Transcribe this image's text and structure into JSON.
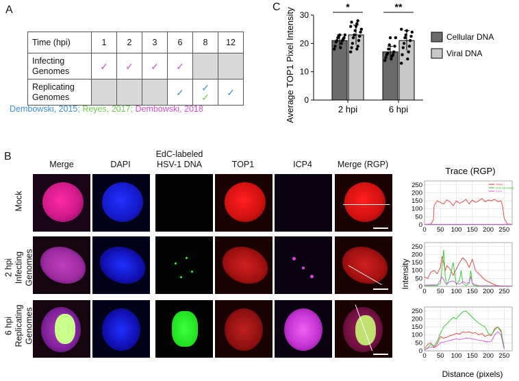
{
  "panels": {
    "a": "A",
    "b": "B",
    "c": "C"
  },
  "table": {
    "header_label": "Time (hpi)",
    "times": [
      "1",
      "2",
      "3",
      "6",
      "8",
      "12"
    ],
    "rows": [
      {
        "label_line1": "Infecting",
        "label_line2": "Genomes",
        "cells": [
          [
            "pink"
          ],
          [
            "pink"
          ],
          [
            "pink"
          ],
          [
            "pink"
          ],
          [],
          []
        ],
        "gray": [
          false,
          false,
          false,
          false,
          true,
          true
        ]
      },
      {
        "label_line1": "Replicating",
        "label_line2": "Genomes",
        "cells": [
          [],
          [],
          [],
          [
            "blue"
          ],
          [
            "blue",
            "green"
          ],
          [
            "blue"
          ]
        ],
        "gray": [
          true,
          true,
          true,
          false,
          false,
          false
        ]
      }
    ],
    "check_glyph": "✓"
  },
  "citations": {
    "c1": "Dembowski, 2015;",
    "c2": "Reyes, 2017;",
    "c3": "Dembowski, 2018",
    "colors": {
      "blue": "#3b8fd6",
      "green": "#6ccf4c",
      "pink": "#d64fc9"
    }
  },
  "imaging": {
    "columns": [
      "Merge",
      "DAPI",
      "EdC-labeled",
      "HSV-1 DNA",
      "TOP1",
      "ICP4",
      "Merge (RGP)"
    ],
    "rows": [
      {
        "lines": [
          "Mock"
        ]
      },
      {
        "lines": [
          "2 hpi",
          "Infecting",
          "Genomes"
        ]
      },
      {
        "lines": [
          "6 hpi",
          "Replicating",
          "Genomes"
        ]
      }
    ]
  },
  "chart_data": [
    {
      "type": "bar",
      "categories": [
        "2 hpi",
        "6 hpi"
      ],
      "series": [
        {
          "name": "Cellular DNA",
          "values": [
            21,
            17
          ],
          "color": "#6b6b6b",
          "points": [
            [
              18,
              18.5,
              19,
              20,
              20.5,
              21,
              21,
              21.5,
              22,
              22,
              22.5,
              23,
              23
            ],
            [
              14,
              14.5,
              15,
              15.5,
              16,
              16,
              16.5,
              17,
              18,
              19,
              19.5,
              22,
              22
            ]
          ]
        },
        {
          "name": "Viral DNA",
          "values": [
            23,
            21
          ],
          "color": "#c8c8c8",
          "points": [
            [
              17,
              18,
              18.5,
              19,
              20,
              21,
              22,
              22.5,
              23,
              24,
              24.5,
              25,
              26,
              26,
              27,
              27.5,
              28
            ],
            [
              13,
              14.5,
              16,
              17,
              18.5,
              19,
              20,
              21,
              22,
              22.5,
              23,
              24,
              24.5,
              25
            ]
          ]
        }
      ],
      "significance": [
        "*",
        "**"
      ],
      "ylabel": "Average TOP1 Pixel Intensity",
      "ylim": [
        0,
        30
      ],
      "yticks": [
        0,
        10,
        20,
        30
      ],
      "legend": "right"
    },
    {
      "type": "line",
      "title": "Trace (RGP)",
      "xlim": [
        0,
        275
      ],
      "ylim": [
        0,
        275
      ],
      "xticks": [
        0,
        50,
        100,
        150,
        200,
        250
      ],
      "yticks": [
        0,
        50,
        100,
        150,
        200,
        250
      ],
      "ylabel": "Intensity",
      "xlabel": "Distance (pixels)",
      "legend_labels": [
        "TOP1",
        "Viral Genomes",
        "ICP4"
      ],
      "series_colors": [
        "#e53935",
        "#22cc22",
        "#d84ce0"
      ],
      "plots": [
        {
          "row": "Mock",
          "series": [
            {
              "name": "TOP1",
              "x": [
                0,
                10,
                20,
                28,
                30,
                40,
                50,
                60,
                70,
                80,
                90,
                100,
                110,
                120,
                130,
                140,
                150,
                160,
                170,
                180,
                190,
                200,
                210,
                220,
                230,
                240,
                245,
                250,
                260,
                275
              ],
              "y": [
                2,
                2,
                5,
                30,
                120,
                150,
                140,
                130,
                155,
                145,
                120,
                150,
                135,
                145,
                160,
                130,
                155,
                140,
                150,
                165,
                145,
                155,
                150,
                160,
                145,
                150,
                120,
                40,
                5,
                2
              ]
            },
            {
              "name": "Viral Genomes",
              "x": [
                0,
                275
              ],
              "y": [
                2,
                2
              ]
            },
            {
              "name": "ICP4",
              "x": [
                0,
                275
              ],
              "y": [
                3,
                3
              ]
            }
          ]
        },
        {
          "row": "2 hpi",
          "series": [
            {
              "name": "TOP1",
              "x": [
                0,
                10,
                20,
                30,
                40,
                50,
                55,
                60,
                65,
                70,
                80,
                90,
                100,
                110,
                120,
                130,
                140,
                150,
                160,
                170,
                180,
                190,
                200,
                210,
                220,
                230,
                240,
                250
              ],
              "y": [
                60,
                50,
                90,
                100,
                80,
                120,
                190,
                150,
                100,
                130,
                110,
                70,
                110,
                150,
                180,
                160,
                120,
                170,
                100,
                80,
                60,
                40,
                30,
                20,
                10,
                5,
                3,
                2
              ]
            },
            {
              "name": "Viral Genomes",
              "x": [
                0,
                40,
                50,
                55,
                60,
                65,
                70,
                80,
                90,
                95,
                100,
                110,
                115,
                120,
                130,
                140,
                145,
                150,
                155,
                160,
                170,
                275
              ],
              "y": [
                5,
                5,
                20,
                120,
                230,
                60,
                10,
                60,
                150,
                80,
                10,
                40,
                100,
                20,
                5,
                20,
                100,
                20,
                5,
                5,
                3,
                2
              ]
            },
            {
              "name": "ICP4",
              "x": [
                0,
                40,
                50,
                55,
                60,
                65,
                70,
                80,
                90,
                100,
                110,
                120,
                130,
                140,
                145,
                150,
                160,
                170,
                275
              ],
              "y": [
                8,
                10,
                40,
                60,
                45,
                20,
                15,
                30,
                35,
                20,
                15,
                30,
                20,
                25,
                60,
                20,
                10,
                5,
                3
              ]
            }
          ]
        },
        {
          "row": "6 hpi",
          "series": [
            {
              "name": "TOP1",
              "x": [
                0,
                10,
                20,
                30,
                40,
                50,
                60,
                70,
                80,
                90,
                100,
                110,
                120,
                130,
                140,
                150,
                160,
                170,
                180,
                190,
                200,
                210,
                220,
                230,
                240,
                250
              ],
              "y": [
                15,
                40,
                50,
                20,
                45,
                90,
                80,
                85,
                95,
                100,
                110,
                105,
                120,
                115,
                120,
                110,
                115,
                100,
                110,
                90,
                100,
                95,
                140,
                150,
                120,
                20
              ]
            },
            {
              "name": "Viral Genomes",
              "x": [
                0,
                10,
                20,
                30,
                40,
                50,
                60,
                70,
                80,
                90,
                100,
                110,
                120,
                130,
                140,
                150,
                160,
                170,
                180,
                190,
                200,
                210,
                220,
                230,
                240,
                250
              ],
              "y": [
                5,
                20,
                40,
                30,
                60,
                110,
                150,
                170,
                190,
                210,
                200,
                225,
                245,
                250,
                230,
                210,
                190,
                175,
                160,
                150,
                110,
                100,
                130,
                150,
                130,
                15
              ]
            },
            {
              "name": "ICP4",
              "x": [
                0,
                10,
                20,
                30,
                40,
                50,
                60,
                70,
                80,
                90,
                100,
                110,
                120,
                130,
                140,
                150,
                160,
                170,
                180,
                190,
                200,
                210,
                220,
                230,
                240,
                250
              ],
              "y": [
                5,
                15,
                25,
                20,
                30,
                50,
                55,
                60,
                65,
                70,
                75,
                70,
                75,
                80,
                78,
                75,
                70,
                68,
                65,
                60,
                55,
                60,
                100,
                120,
                100,
                10
              ]
            }
          ]
        }
      ]
    }
  ]
}
